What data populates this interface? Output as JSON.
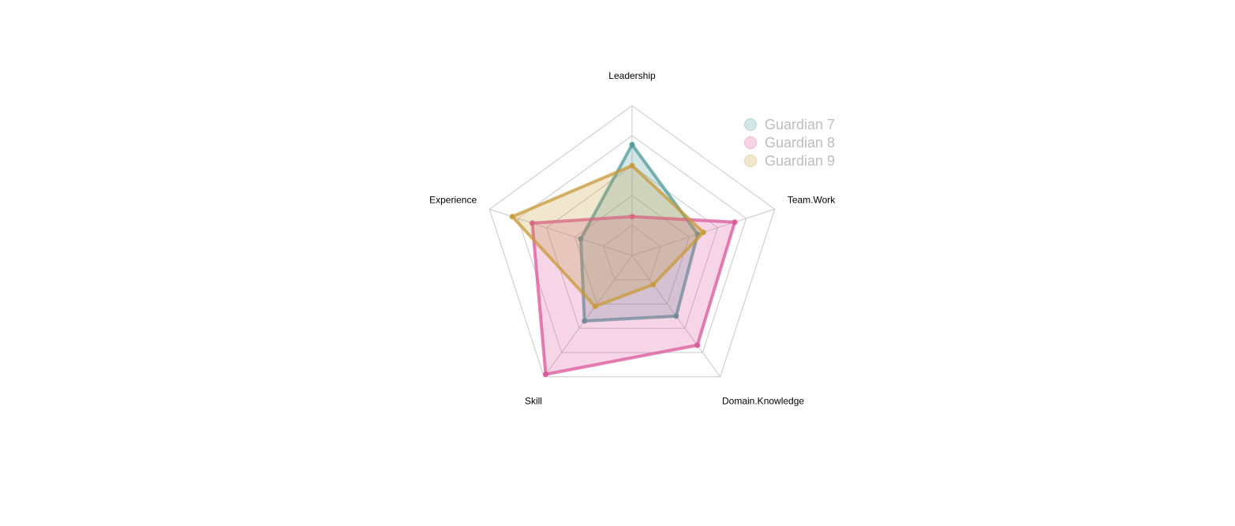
{
  "chart_data": {
    "type": "radar",
    "axes": [
      "Leadership",
      "Team.Work",
      "Domain.Knowledge",
      "Skill",
      "Experience"
    ],
    "range": [
      0,
      5
    ],
    "grid_levels": 5,
    "grid": true,
    "legend_position": "top-right",
    "series": [
      {
        "name": "Guardian 7",
        "color": "#4f9a9a",
        "values": [
          3.7,
          2.3,
          2.5,
          2.7,
          1.8
        ]
      },
      {
        "name": "Guardian 8",
        "color": "#d9569a",
        "values": [
          1.3,
          3.6,
          3.7,
          4.9,
          3.5
        ]
      },
      {
        "name": "Guardian 9",
        "color": "#c89a3a",
        "values": [
          3.0,
          2.5,
          1.2,
          2.1,
          4.2
        ]
      }
    ]
  }
}
